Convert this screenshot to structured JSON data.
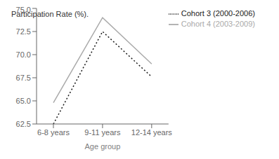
{
  "chart_data": {
    "type": "line",
    "xlabel": "Age group",
    "ylabel": "Participation Rate (%).",
    "categories": [
      "6-8 years",
      "9-11 years",
      "12-14 years"
    ],
    "series": [
      {
        "name": "Cohort 3 (2000-2006)",
        "color": "#1a1a1a",
        "line_style": "dotted",
        "values": [
          62.5,
          72.5,
          67.6
        ]
      },
      {
        "name": "Cohort 4 (2003-2009)",
        "color": "#aaaaaa",
        "line_style": "solid",
        "values": [
          64.8,
          74.0,
          69.0
        ]
      }
    ],
    "ylim": [
      62.5,
      75.0
    ],
    "yticks": [
      62.5,
      {
        "value": 65.0,
        "label": "65.0"
      },
      67.5,
      {
        "value": 70.0,
        "label": "70.0"
      },
      72.5,
      {
        "value": 75.0,
        "label": "75.0"
      }
    ],
    "grid": false,
    "legend": "upper right"
  }
}
